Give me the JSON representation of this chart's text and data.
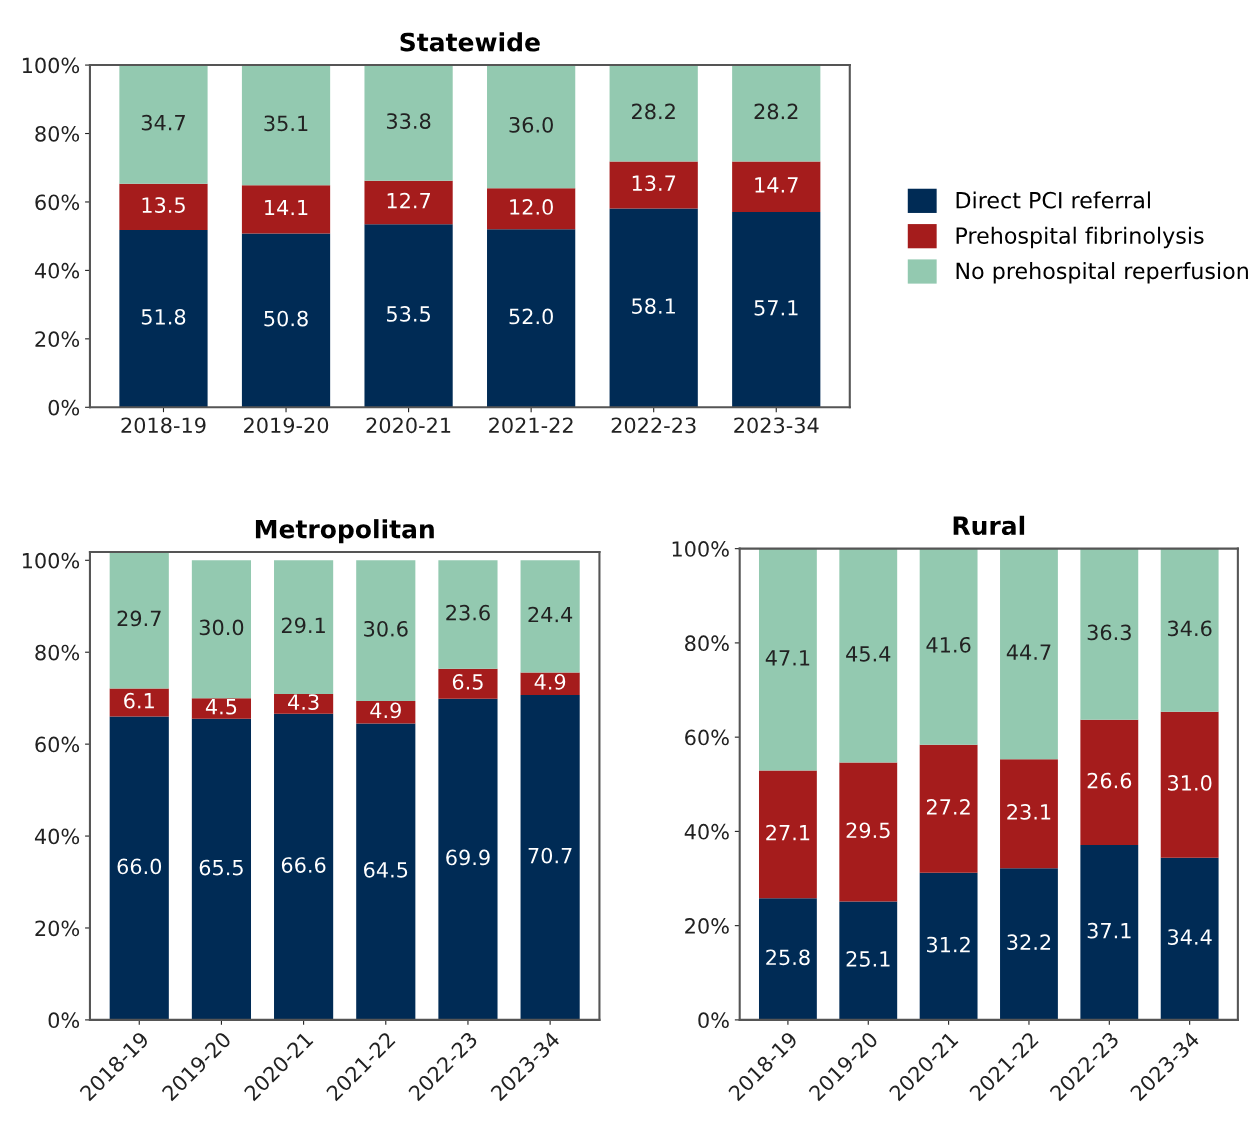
{
  "chart_data": [
    {
      "type": "bar",
      "title": "Statewide",
      "stacked": true,
      "legend": "right",
      "grid": false,
      "categories": [
        "2018-19",
        "2019-20",
        "2020-21",
        "2021-22",
        "2022-23",
        "2023-34"
      ],
      "ylim": [
        0,
        100
      ],
      "yticks": [
        {
          "value": 0,
          "label": "0%"
        },
        {
          "value": 20,
          "label": "20%"
        },
        {
          "value": 40,
          "label": "40%"
        },
        {
          "value": 60,
          "label": "60%"
        },
        {
          "value": 80,
          "label": "80%"
        },
        {
          "value": 100,
          "label": "100%"
        }
      ],
      "series": [
        {
          "name": "Direct PCI referral",
          "color": "#002b55",
          "values": [
            51.8,
            50.8,
            53.5,
            52.0,
            58.1,
            57.1
          ],
          "value_labels": [
            "51.8",
            "50.8",
            "53.5",
            "52.0",
            "58.1",
            "57.1"
          ]
        },
        {
          "name": "Prehospital fibrinolysis",
          "color": "#a51c1c",
          "values": [
            13.5,
            14.1,
            12.7,
            12.0,
            13.7,
            14.7
          ],
          "value_labels": [
            "13.5",
            "14.1",
            "12.7",
            "12.0",
            "13.7",
            "14.7"
          ]
        },
        {
          "name": "No prehospital reperfusion",
          "color": "#93c9b0",
          "values": [
            34.7,
            35.1,
            33.8,
            36.0,
            28.2,
            28.2
          ],
          "value_labels": [
            "34.7",
            "35.1",
            "33.8",
            "36.0",
            "28.2",
            "28.2"
          ]
        }
      ]
    },
    {
      "type": "bar",
      "title": "Metropolitan",
      "stacked": true,
      "grid": false,
      "categories": [
        "2018-19",
        "2019-20",
        "2020-21",
        "2021-22",
        "2022-23",
        "2023-34"
      ],
      "ylim": [
        0,
        101.8
      ],
      "yticks": [
        {
          "value": 0,
          "label": "0%"
        },
        {
          "value": 20,
          "label": "20%"
        },
        {
          "value": 40,
          "label": "40%"
        },
        {
          "value": 60,
          "label": "60%"
        },
        {
          "value": 80,
          "label": "80%"
        },
        {
          "value": 100,
          "label": "100%"
        }
      ],
      "series": [
        {
          "color": "#002b55",
          "values": [
            66.0,
            65.5,
            66.6,
            64.5,
            69.9,
            70.7
          ],
          "value_labels": [
            "66.0",
            "65.5",
            "66.6",
            "64.5",
            "69.9",
            "70.7"
          ]
        },
        {
          "color": "#a51c1c",
          "values": [
            6.1,
            4.5,
            4.3,
            4.9,
            6.5,
            4.9
          ],
          "value_labels": [
            "6.1",
            "4.5",
            "4.3",
            "4.9",
            "6.5",
            "4.9"
          ]
        },
        {
          "color": "#93c9b0",
          "values": [
            29.7,
            30.0,
            29.1,
            30.6,
            23.6,
            24.4
          ],
          "value_labels": [
            "29.7",
            "30.0",
            "29.1",
            "30.6",
            "23.6",
            "24.4"
          ]
        }
      ]
    },
    {
      "type": "bar",
      "title": "Rural",
      "stacked": true,
      "grid": false,
      "categories": [
        "2018-19",
        "2019-20",
        "2020-21",
        "2021-22",
        "2022-23",
        "2023-34"
      ],
      "ylim": [
        0,
        100
      ],
      "yticks": [
        {
          "value": 0,
          "label": "0%"
        },
        {
          "value": 20,
          "label": "20%"
        },
        {
          "value": 40,
          "label": "40%"
        },
        {
          "value": 60,
          "label": "60%"
        },
        {
          "value": 80,
          "label": "80%"
        },
        {
          "value": 100,
          "label": "100%"
        }
      ],
      "series": [
        {
          "color": "#002b55",
          "values": [
            25.8,
            25.1,
            31.2,
            32.2,
            37.1,
            34.4
          ],
          "value_labels": [
            "25.8",
            "25.1",
            "31.2",
            "32.2",
            "37.1",
            "34.4"
          ]
        },
        {
          "color": "#a51c1c",
          "values": [
            27.1,
            29.5,
            27.2,
            23.1,
            26.6,
            31.0
          ],
          "value_labels": [
            "27.1",
            "29.5",
            "27.2",
            "23.1",
            "26.6",
            "31.0"
          ]
        },
        {
          "color": "#93c9b0",
          "values": [
            47.1,
            45.4,
            41.6,
            44.7,
            36.3,
            34.6
          ],
          "value_labels": [
            "47.1",
            "45.4",
            "41.6",
            "44.7",
            "36.3",
            "34.6"
          ]
        }
      ]
    }
  ]
}
